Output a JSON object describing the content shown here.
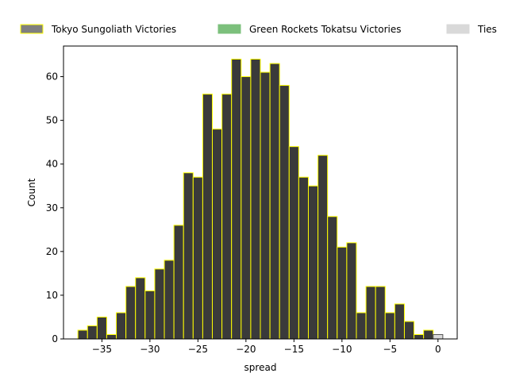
{
  "chart_data": {
    "type": "bar",
    "title": "",
    "xlabel": "spread",
    "ylabel": "Count",
    "xlim": [
      -39,
      2
    ],
    "ylim": [
      0,
      67
    ],
    "grid": false,
    "legend_position": "top",
    "bin_width": 1,
    "x_ticks": [
      -35,
      -30,
      -25,
      -20,
      -15,
      -10,
      -5,
      0
    ],
    "x_tick_labels": [
      "−35",
      "−30",
      "−25",
      "−20",
      "−15",
      "−10",
      "−5",
      "0"
    ],
    "y_ticks": [
      0,
      10,
      20,
      30,
      40,
      50,
      60
    ],
    "y_tick_labels": [
      "0",
      "10",
      "20",
      "30",
      "40",
      "50",
      "60"
    ],
    "series": [
      {
        "name": "Tokyo Sungoliath Victories",
        "color": "#3a3a3a",
        "legend_color": "#808080",
        "edge_color": "#ffff00",
        "x": [
          -37,
          -36,
          -35,
          -34,
          -33,
          -32,
          -31,
          -30,
          -29,
          -28,
          -27,
          -26,
          -25,
          -24,
          -23,
          -22,
          -21,
          -20,
          -19,
          -18,
          -17,
          -16,
          -15,
          -14,
          -13,
          -12,
          -11,
          -10,
          -9,
          -8,
          -7,
          -6,
          -5,
          -4,
          -3,
          -2,
          -1
        ],
        "values": [
          2,
          3,
          5,
          1,
          6,
          12,
          14,
          11,
          16,
          18,
          26,
          38,
          37,
          56,
          48,
          56,
          64,
          60,
          64,
          61,
          63,
          58,
          44,
          37,
          35,
          42,
          28,
          21,
          22,
          6,
          12,
          12,
          6,
          8,
          4,
          1,
          2
        ]
      },
      {
        "name": "Green Rockets Tokatsu Victories",
        "color": "#7cc07c",
        "x": [],
        "values": []
      },
      {
        "name": "Ties",
        "color": "#d9d9d9",
        "edge_color": "#555555",
        "x": [
          0
        ],
        "values": [
          1
        ]
      }
    ]
  }
}
